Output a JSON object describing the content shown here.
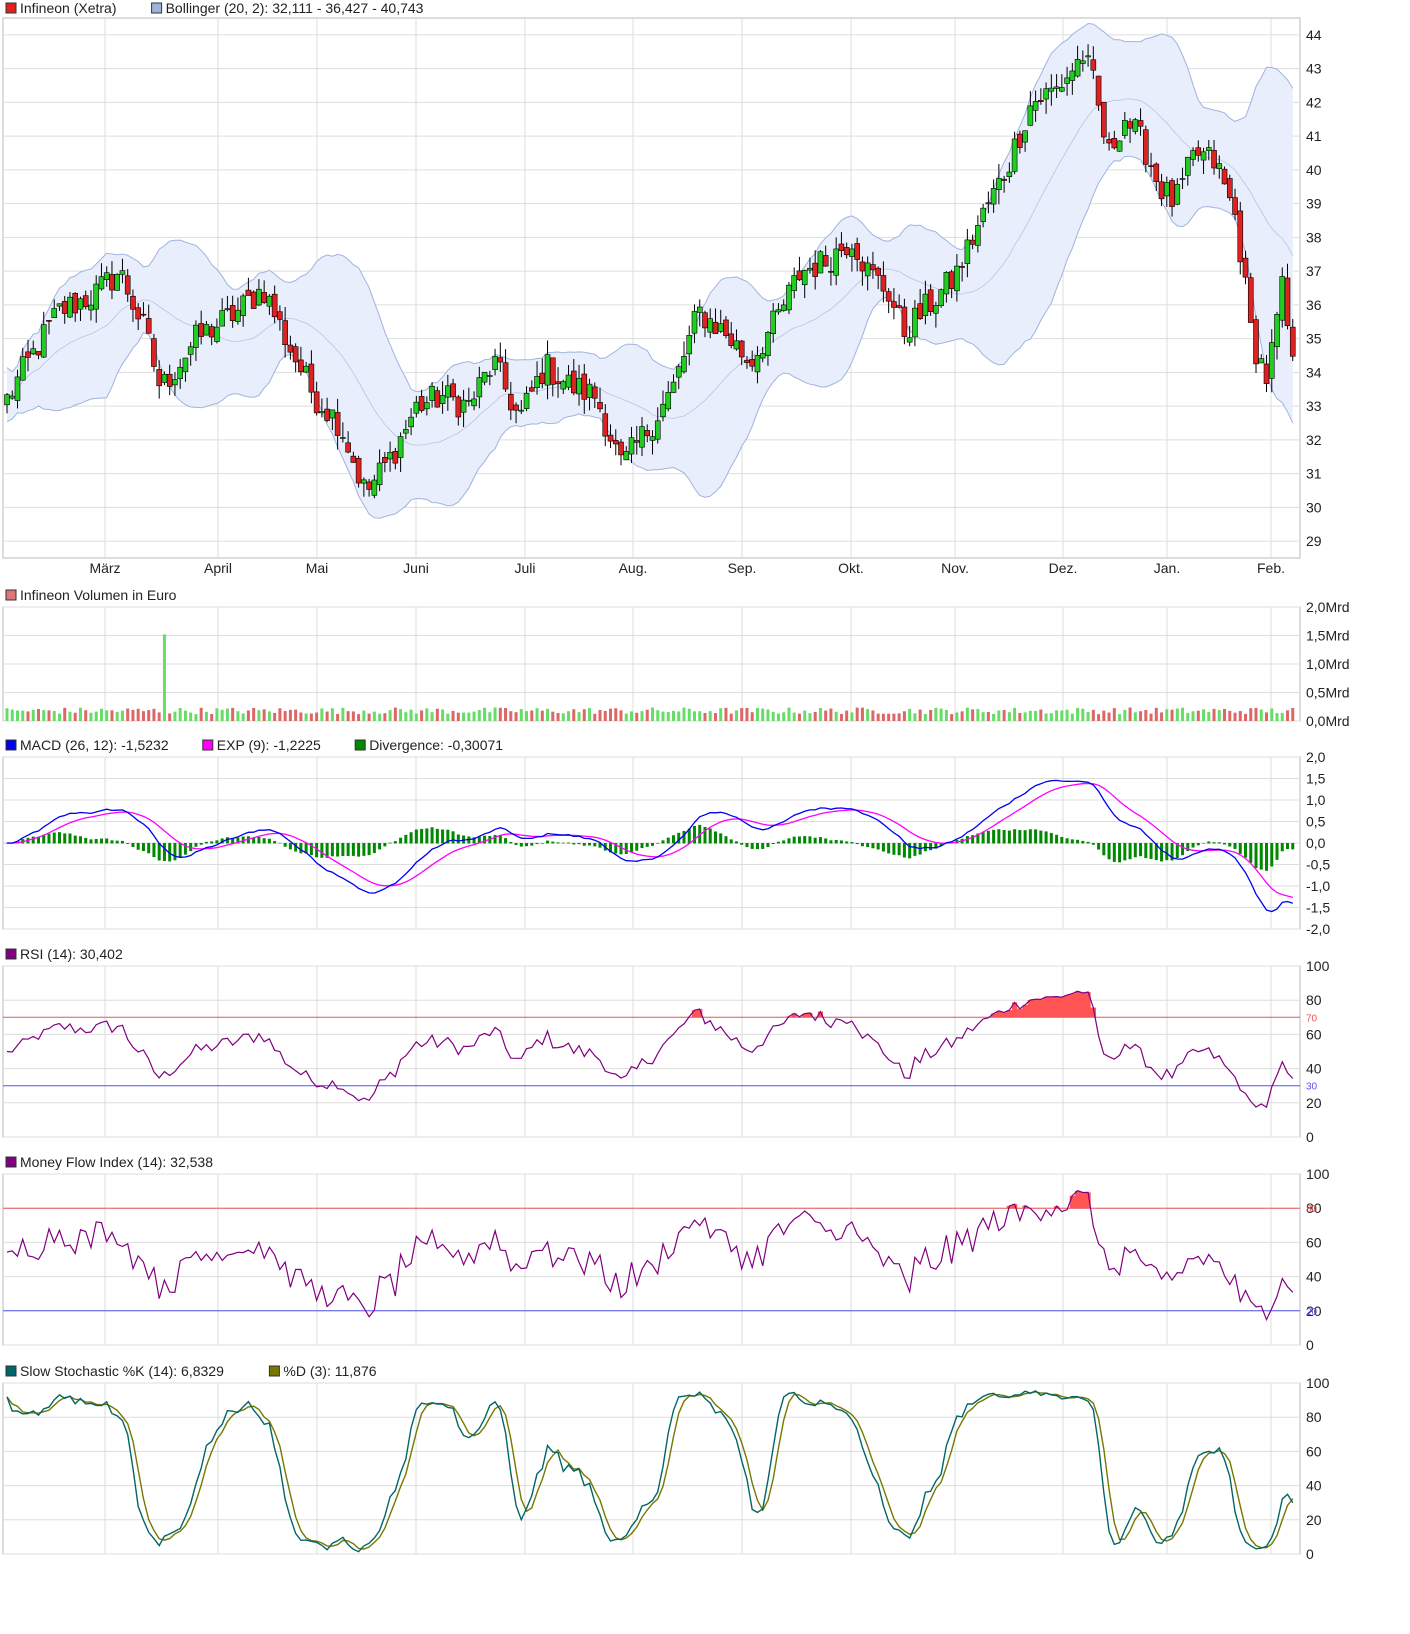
{
  "colors": {
    "up": "#22cc22",
    "down": "#dd2222",
    "band_fill": "#e8eefc",
    "band_line": "#9fb4dd",
    "grid": "#dddddd",
    "macd": "#0000ee",
    "signal": "#ff00ff",
    "divergence": "#008800",
    "rsi": "#800080",
    "mfi": "#800080",
    "stoch_k": "#006666",
    "stoch_d": "#777700",
    "overbought_line": "#ee5555",
    "oversold_line": "#5555ee"
  },
  "months": [
    "März",
    "April",
    "Mai",
    "Juni",
    "Juli",
    "Aug.",
    "Sep.",
    "Okt.",
    "Nov.",
    "Dez.",
    "Jan.",
    "Feb."
  ],
  "panels": {
    "price": {
      "legend": [
        "Infineon (Xetra)",
        "Bollinger (20, 2): 32,111 - 36,427 - 40,743"
      ],
      "ticks": [
        "29",
        "30",
        "31",
        "32",
        "33",
        "34",
        "35",
        "36",
        "37",
        "38",
        "39",
        "40",
        "41",
        "42",
        "43",
        "44"
      ]
    },
    "volume": {
      "legend": [
        "Infineon Volumen in Euro"
      ],
      "ticks": [
        "0,0Mrd",
        "0,5Mrd",
        "1,0Mrd",
        "1,5Mrd",
        "2,0Mrd"
      ]
    },
    "macd": {
      "legend": [
        "MACD (26, 12): -1,5232",
        "EXP (9): -1,2225",
        "Divergence: -0,30071"
      ],
      "ticks": [
        "-2,0",
        "-1,5",
        "-1,0",
        "-0,5",
        "0,0",
        "0,5",
        "1,0",
        "1,5",
        "2,0"
      ]
    },
    "rsi": {
      "legend": [
        "RSI (14): 30,402"
      ],
      "ticks": [
        "0",
        "20",
        "40",
        "60",
        "80",
        "100"
      ],
      "upper_label": "70",
      "lower_label": "30"
    },
    "mfi": {
      "legend": [
        "Money Flow Index (14): 32,538"
      ],
      "ticks": [
        "0",
        "20",
        "40",
        "60",
        "80",
        "100"
      ],
      "upper_label": "80",
      "lower_label": "20"
    },
    "stoch": {
      "legend": [
        "Slow Stochastic %K (14): 6,8329",
        "%D (3): 11,876"
      ],
      "ticks": [
        "0",
        "20",
        "40",
        "60",
        "80",
        "100"
      ]
    }
  },
  "chart_data": {
    "type": "candlestick",
    "title": "Infineon (Xetra)",
    "bars": 246,
    "price_ylim": [
      28.5,
      44.5
    ],
    "price_anchors": [
      [
        0,
        33.2
      ],
      [
        3,
        34.0
      ],
      [
        10,
        35.8
      ],
      [
        17,
        36.3
      ],
      [
        22,
        37.0
      ],
      [
        27,
        35.2
      ],
      [
        30,
        33.5
      ],
      [
        37,
        35.0
      ],
      [
        45,
        35.8
      ],
      [
        50,
        36.5
      ],
      [
        55,
        34.8
      ],
      [
        60,
        33.3
      ],
      [
        65,
        32.5
      ],
      [
        70,
        30.4
      ],
      [
        75,
        31.5
      ],
      [
        80,
        33.0
      ],
      [
        85,
        33.3
      ],
      [
        90,
        33.0
      ],
      [
        95,
        34.3
      ],
      [
        100,
        32.6
      ],
      [
        105,
        34.2
      ],
      [
        110,
        33.6
      ],
      [
        115,
        33.3
      ],
      [
        120,
        31.2
      ],
      [
        125,
        32.3
      ],
      [
        130,
        33.5
      ],
      [
        135,
        35.8
      ],
      [
        140,
        35.2
      ],
      [
        145,
        34.3
      ],
      [
        150,
        35.5
      ],
      [
        155,
        37.0
      ],
      [
        160,
        37.3
      ],
      [
        165,
        38.0
      ],
      [
        168,
        37.0
      ],
      [
        172,
        36.4
      ],
      [
        175,
        35.2
      ],
      [
        180,
        36.0
      ],
      [
        185,
        36.8
      ],
      [
        190,
        38.5
      ],
      [
        195,
        40.0
      ],
      [
        200,
        42.0
      ],
      [
        205,
        42.4
      ],
      [
        210,
        43.4
      ],
      [
        212,
        42.6
      ],
      [
        215,
        40.4
      ],
      [
        218,
        41.6
      ],
      [
        222,
        40.7
      ],
      [
        225,
        39.5
      ],
      [
        228,
        39.0
      ],
      [
        232,
        40.5
      ],
      [
        236,
        40.2
      ],
      [
        240,
        38.5
      ],
      [
        243,
        35.0
      ],
      [
        246,
        33.8
      ],
      [
        249,
        36.5
      ],
      [
        252,
        32.9
      ]
    ],
    "bollinger": {
      "period": 20,
      "stddev": 2,
      "lower": 32.111,
      "middle": 36.427,
      "upper": 40.743
    },
    "volume_ylim": [
      0,
      2.0
    ],
    "volume_unit": "Mrd",
    "volume_spike": {
      "bar": 30,
      "value": 1.52
    },
    "macd": {
      "fast": 26,
      "slow": 12,
      "signal": 9,
      "macd": -1.5232,
      "exp": -1.2225,
      "divergence": -0.30071,
      "ylim": [
        -2.0,
        2.0
      ]
    },
    "rsi": {
      "period": 14,
      "value": 30.402,
      "upper": 70,
      "lower": 30,
      "ylim": [
        0,
        100
      ]
    },
    "mfi": {
      "period": 14,
      "value": 32.538,
      "upper": 80,
      "lower": 20,
      "ylim": [
        0,
        100
      ]
    },
    "stochastic": {
      "period": 14,
      "k": 6.8329,
      "d_period": 3,
      "d": 11.876,
      "ylim": [
        0,
        100
      ]
    }
  }
}
